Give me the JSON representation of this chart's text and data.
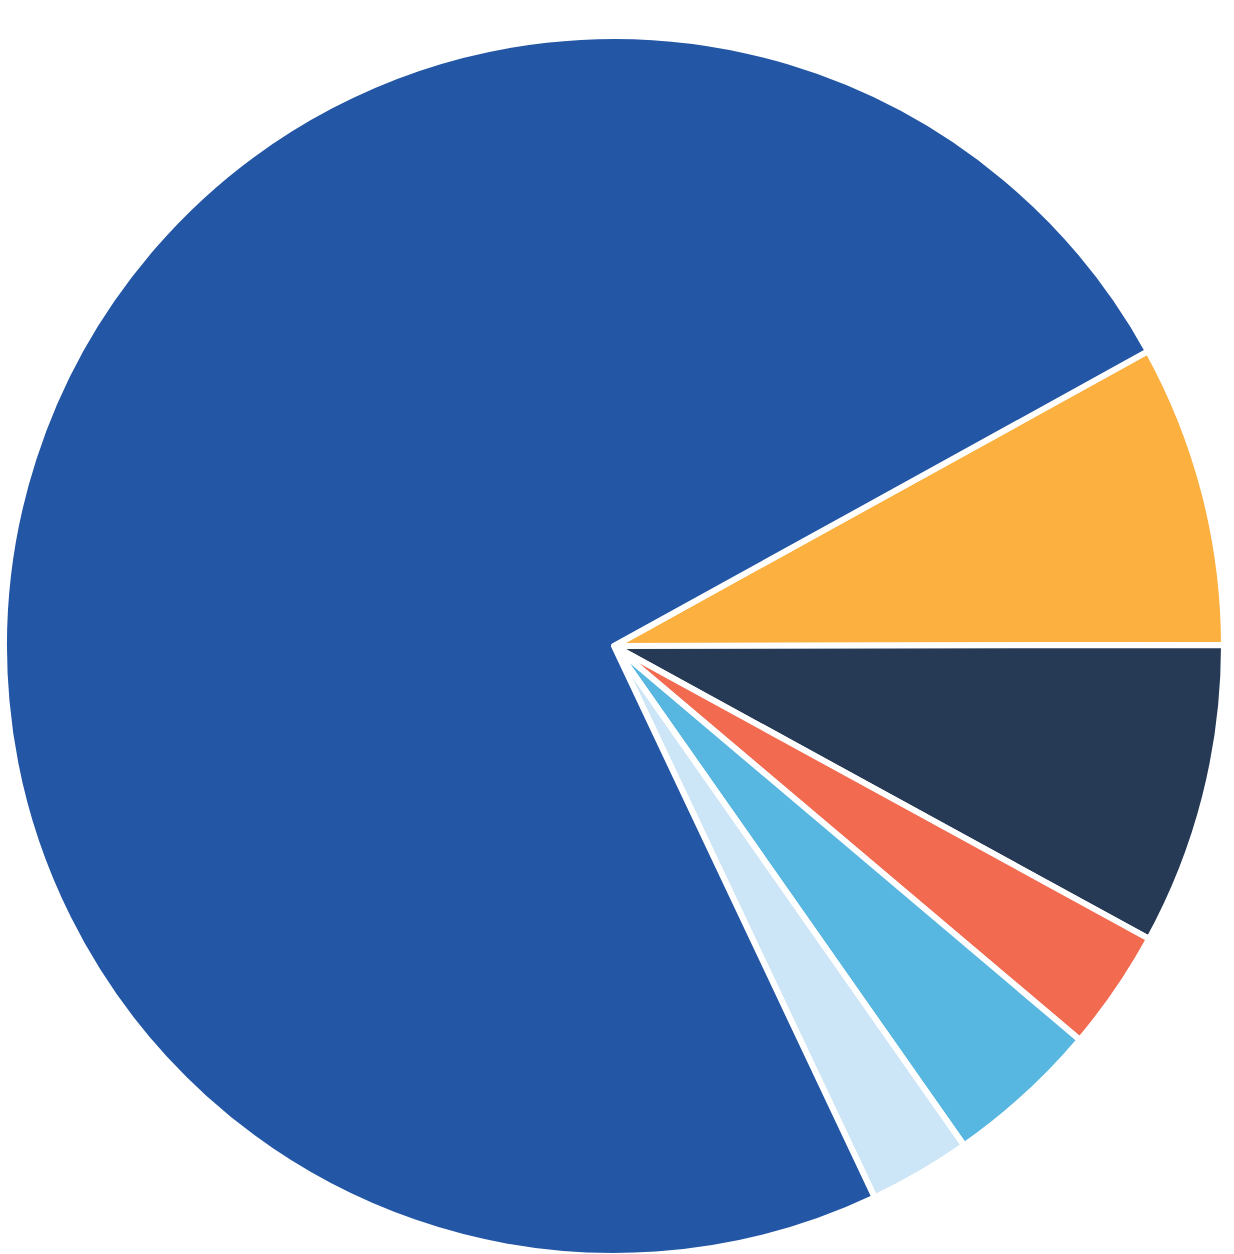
{
  "chart_data": {
    "type": "pie",
    "categories": [
      null,
      null,
      null,
      null,
      null,
      null
    ],
    "values": [
      8,
      8,
      3.2,
      4.1,
      2.7,
      74
    ],
    "colors": [
      "#fbb040",
      "#263a56",
      "#f26b50",
      "#58b7e0",
      "#cde6f7",
      "#2356a4"
    ]
  }
}
